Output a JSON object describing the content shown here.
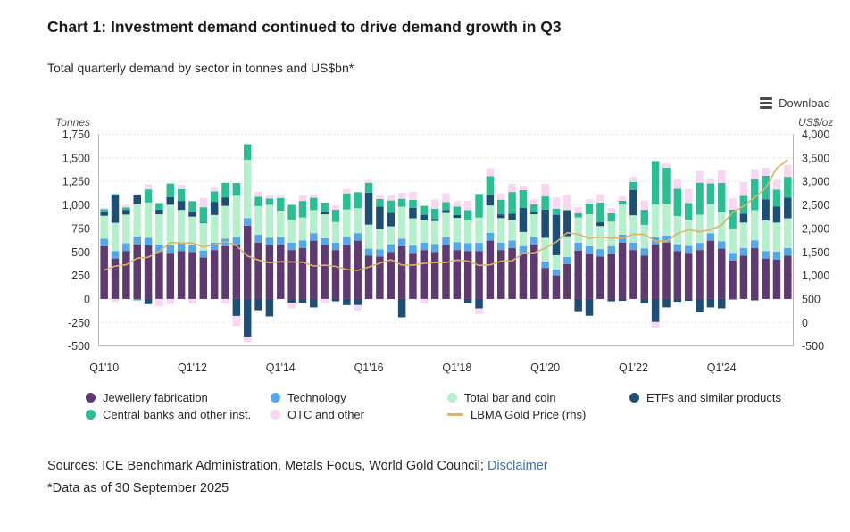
{
  "header": {
    "title": "Chart 1: Investment demand continued to drive demand growth in Q3",
    "subtitle": "Total quarterly demand by sector in tonnes and US$bn*"
  },
  "toolbar": {
    "download_label": "Download"
  },
  "footer": {
    "sources_prefix": "Sources: ICE Benchmark Administration, Metals Focus, World Gold Council; ",
    "disclaimer_label": "Disclaimer",
    "data_note": "*Data as of 30 September 2025"
  },
  "colors": {
    "jewellery": "#5e3a71",
    "technology": "#54a7ea",
    "bar_and_coin": "#b4f0cb",
    "etfs": "#1d4f76",
    "central_banks": "#2abf92",
    "otc": "#f9d7f3",
    "gold_line": "#deb264",
    "grid": "#c9c9c9",
    "axis_line": "#b5b5b5",
    "tick_text": "#333333",
    "link": "#3c6eb4"
  },
  "legend": {
    "items": [
      {
        "label": "Jewellery fabrication",
        "color": "#5e3a71",
        "swatch": "dot",
        "row": 0,
        "col": 0
      },
      {
        "label": "Technology",
        "color": "#54a7ea",
        "swatch": "dot",
        "row": 0,
        "col": 1
      },
      {
        "label": "Total bar and coin",
        "color": "#b4f0cb",
        "swatch": "dot",
        "row": 0,
        "col": 2
      },
      {
        "label": "ETFs and similar products",
        "color": "#1d4f76",
        "swatch": "dot",
        "row": 0,
        "col": 3
      },
      {
        "label": "Central banks and other inst.",
        "color": "#2abf92",
        "swatch": "dot",
        "row": 1,
        "col": 0
      },
      {
        "label": "OTC and other",
        "color": "#f9d7f3",
        "swatch": "dot",
        "row": 1,
        "col": 1
      },
      {
        "label": "LBMA Gold Price (rhs)",
        "color": "#deb264",
        "swatch": "line",
        "row": 1,
        "col": 2
      }
    ]
  },
  "chart_data": {
    "type": "bar",
    "subtype": "stacked-bars-with-line-overlay",
    "title": "Total quarterly demand by sector in tonnes and US$bn*",
    "grid": "dotted-horizontal",
    "legend_position": "bottom",
    "left_axis": {
      "unit": "Tonnes",
      "min": -500,
      "max": 1750,
      "step": 250,
      "ticks": [
        "1,750",
        "1,500",
        "1,250",
        "1,000",
        "750",
        "500",
        "250",
        "0",
        "-250",
        "-500"
      ]
    },
    "right_axis": {
      "unit": "US$/oz",
      "min": -500,
      "max": 4000,
      "step": 500,
      "ticks": [
        "4,000",
        "3,500",
        "3,000",
        "2,500",
        "2,000",
        "1,500",
        "1,000",
        "500",
        "0",
        "-500"
      ]
    },
    "x_tick_labels": [
      "Q1'10",
      "Q1'12",
      "Q1'14",
      "Q1'16",
      "Q1'18",
      "Q1'20",
      "Q1'22",
      "Q1'24"
    ],
    "x_tick_indices": [
      0,
      8,
      16,
      24,
      32,
      40,
      48,
      56
    ],
    "categories": [
      "Q1'10",
      "Q2'10",
      "Q3'10",
      "Q4'10",
      "Q1'11",
      "Q2'11",
      "Q3'11",
      "Q4'11",
      "Q1'12",
      "Q2'12",
      "Q3'12",
      "Q4'12",
      "Q1'13",
      "Q2'13",
      "Q3'13",
      "Q4'13",
      "Q1'14",
      "Q2'14",
      "Q3'14",
      "Q4'14",
      "Q1'15",
      "Q2'15",
      "Q3'15",
      "Q4'15",
      "Q1'16",
      "Q2'16",
      "Q3'16",
      "Q4'16",
      "Q1'17",
      "Q2'17",
      "Q3'17",
      "Q4'17",
      "Q1'18",
      "Q2'18",
      "Q3'18",
      "Q4'18",
      "Q1'19",
      "Q2'19",
      "Q3'19",
      "Q4'19",
      "Q1'20",
      "Q2'20",
      "Q3'20",
      "Q4'20",
      "Q1'21",
      "Q2'21",
      "Q3'21",
      "Q4'21",
      "Q1'22",
      "Q2'22",
      "Q3'22",
      "Q4'22",
      "Q1'23",
      "Q2'23",
      "Q3'23",
      "Q4'23",
      "Q1'24",
      "Q2'24",
      "Q3'24",
      "Q4'24",
      "Q1'25",
      "Q2'25",
      "Q3'25"
    ],
    "series": [
      {
        "name": "Jewellery fabrication",
        "color": "#5e3a71",
        "axis": "left",
        "values": [
          560,
          430,
          510,
          580,
          570,
          500,
          490,
          510,
          500,
          440,
          520,
          560,
          580,
          780,
          600,
          570,
          580,
          520,
          540,
          620,
          570,
          520,
          580,
          620,
          460,
          450,
          500,
          560,
          490,
          520,
          500,
          570,
          520,
          510,
          510,
          620,
          520,
          540,
          480,
          580,
          330,
          250,
          370,
          515,
          480,
          450,
          480,
          600,
          520,
          460,
          580,
          600,
          510,
          490,
          520,
          620,
          535,
          410,
          460,
          540,
          430,
          420,
          460
        ]
      },
      {
        "name": "Technology",
        "color": "#54a7ea",
        "axis": "left",
        "values": [
          80,
          80,
          82,
          85,
          80,
          80,
          82,
          82,
          75,
          75,
          78,
          80,
          78,
          80,
          82,
          82,
          78,
          80,
          82,
          80,
          75,
          78,
          82,
          80,
          75,
          78,
          82,
          80,
          78,
          80,
          84,
          84,
          82,
          84,
          86,
          84,
          80,
          82,
          82,
          80,
          70,
          65,
          75,
          82,
          80,
          80,
          82,
          84,
          80,
          78,
          76,
          74,
          72,
          74,
          76,
          78,
          78,
          80,
          82,
          84,
          80,
          82,
          82
        ]
      },
      {
        "name": "Total bar and coin",
        "color": "#b4f0cb",
        "axis": "left",
        "values": [
          245,
          300,
          305,
          345,
          375,
          320,
          430,
          355,
          300,
          290,
          295,
          350,
          440,
          620,
          305,
          350,
          285,
          240,
          245,
          245,
          255,
          220,
          290,
          265,
          255,
          215,
          190,
          340,
          290,
          240,
          245,
          260,
          260,
          240,
          270,
          290,
          260,
          220,
          150,
          240,
          250,
          150,
          222,
          270,
          340,
          245,
          260,
          320,
          290,
          250,
          350,
          340,
          300,
          280,
          300,
          310,
          310,
          260,
          270,
          320,
          325,
          310,
          316
        ]
      },
      {
        "name": "ETFs and similar products",
        "color": "#1d4f76",
        "axis": "left",
        "values": [
          45,
          290,
          50,
          90,
          -55,
          50,
          80,
          95,
          50,
          5,
          140,
          90,
          -180,
          -400,
          -120,
          -185,
          5,
          -40,
          -40,
          -90,
          25,
          -25,
          -65,
          -65,
          340,
          240,
          145,
          -195,
          110,
          55,
          20,
          30,
          30,
          -45,
          -100,
          110,
          40,
          65,
          255,
          25,
          300,
          430,
          273,
          -130,
          -178,
          40,
          -25,
          -20,
          270,
          -45,
          -245,
          -90,
          -30,
          -20,
          -140,
          -90,
          -100,
          -5,
          95,
          -15,
          225,
          170,
          220
        ]
      },
      {
        "name": "Central banks and other inst.",
        "color": "#2abf92",
        "axis": "left",
        "values": [
          25,
          15,
          25,
          -15,
          140,
          70,
          145,
          125,
          115,
          165,
          110,
          155,
          135,
          165,
          100,
          65,
          125,
          160,
          175,
          130,
          100,
          130,
          170,
          170,
          105,
          80,
          130,
          85,
          85,
          95,
          110,
          85,
          90,
          110,
          250,
          200,
          155,
          230,
          190,
          80,
          140,
          65,
          10,
          45,
          115,
          210,
          90,
          40,
          85,
          160,
          460,
          380,
          290,
          175,
          340,
          220,
          310,
          200,
          190,
          330,
          250,
          180,
          220
        ]
      },
      {
        "name": "OTC and other",
        "color": "#f9d7f3",
        "axis": "left",
        "values": [
          15,
          -30,
          25,
          20,
          55,
          -80,
          -55,
          45,
          -50,
          100,
          40,
          -50,
          -105,
          -55,
          55,
          35,
          25,
          -60,
          60,
          35,
          -40,
          45,
          45,
          -60,
          25,
          35,
          55,
          65,
          85,
          -50,
          100,
          95,
          55,
          100,
          -60,
          85,
          65,
          85,
          45,
          55,
          135,
          120,
          155,
          65,
          45,
          85,
          55,
          45,
          55,
          100,
          -60,
          45,
          105,
          150,
          125,
          55,
          135,
          120,
          145,
          105,
          85,
          105,
          125
        ]
      },
      {
        "name": "LBMA Gold Price (rhs)",
        "color": "#deb264",
        "axis": "right",
        "type": "line",
        "values": [
          1110,
          1197,
          1227,
          1367,
          1387,
          1508,
          1702,
          1688,
          1691,
          1609,
          1652,
          1722,
          1630,
          1414,
          1326,
          1272,
          1293,
          1288,
          1282,
          1201,
          1218,
          1192,
          1124,
          1106,
          1181,
          1260,
          1334,
          1220,
          1219,
          1257,
          1278,
          1275,
          1329,
          1306,
          1213,
          1226,
          1304,
          1309,
          1472,
          1481,
          1583,
          1711,
          1909,
          1874,
          1794,
          1817,
          1790,
          1795,
          1877,
          1871,
          1729,
          1726,
          1890,
          1976,
          1928,
          1971,
          2070,
          2338,
          2474,
          2663,
          2860,
          3281,
          3457
        ]
      }
    ]
  }
}
